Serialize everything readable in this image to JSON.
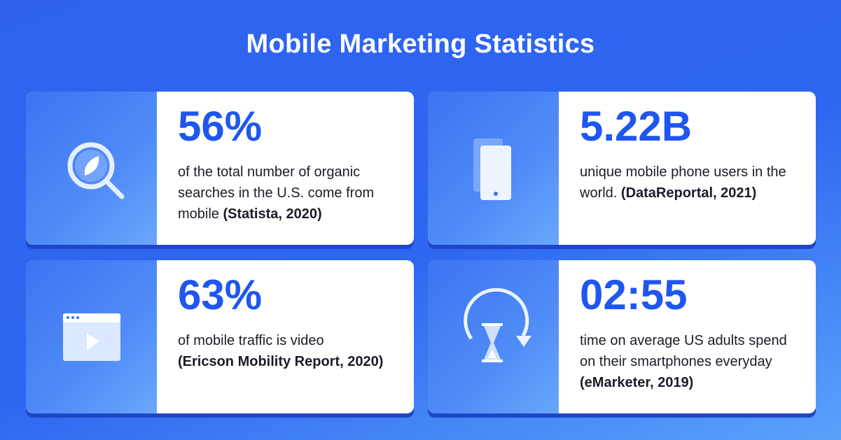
{
  "header": {
    "title": "Mobile Marketing Statistics"
  },
  "cards": [
    {
      "stat": "56%",
      "text": "of the total number of organic searches in the U.S. come from mobile",
      "source": "(Statista, 2020)"
    },
    {
      "stat": "5.22B",
      "text": "unique mobile phone users in the world.",
      "source": "(DataReportal, 2021)"
    },
    {
      "stat": "63%",
      "text": "of mobile traffic is video",
      "source": "(Ericson Mobility Report, 2020)"
    },
    {
      "stat": "02:55",
      "text": "time on average US adults spend on their smartphones everyday",
      "source": "(eMarketer, 2019)"
    }
  ]
}
